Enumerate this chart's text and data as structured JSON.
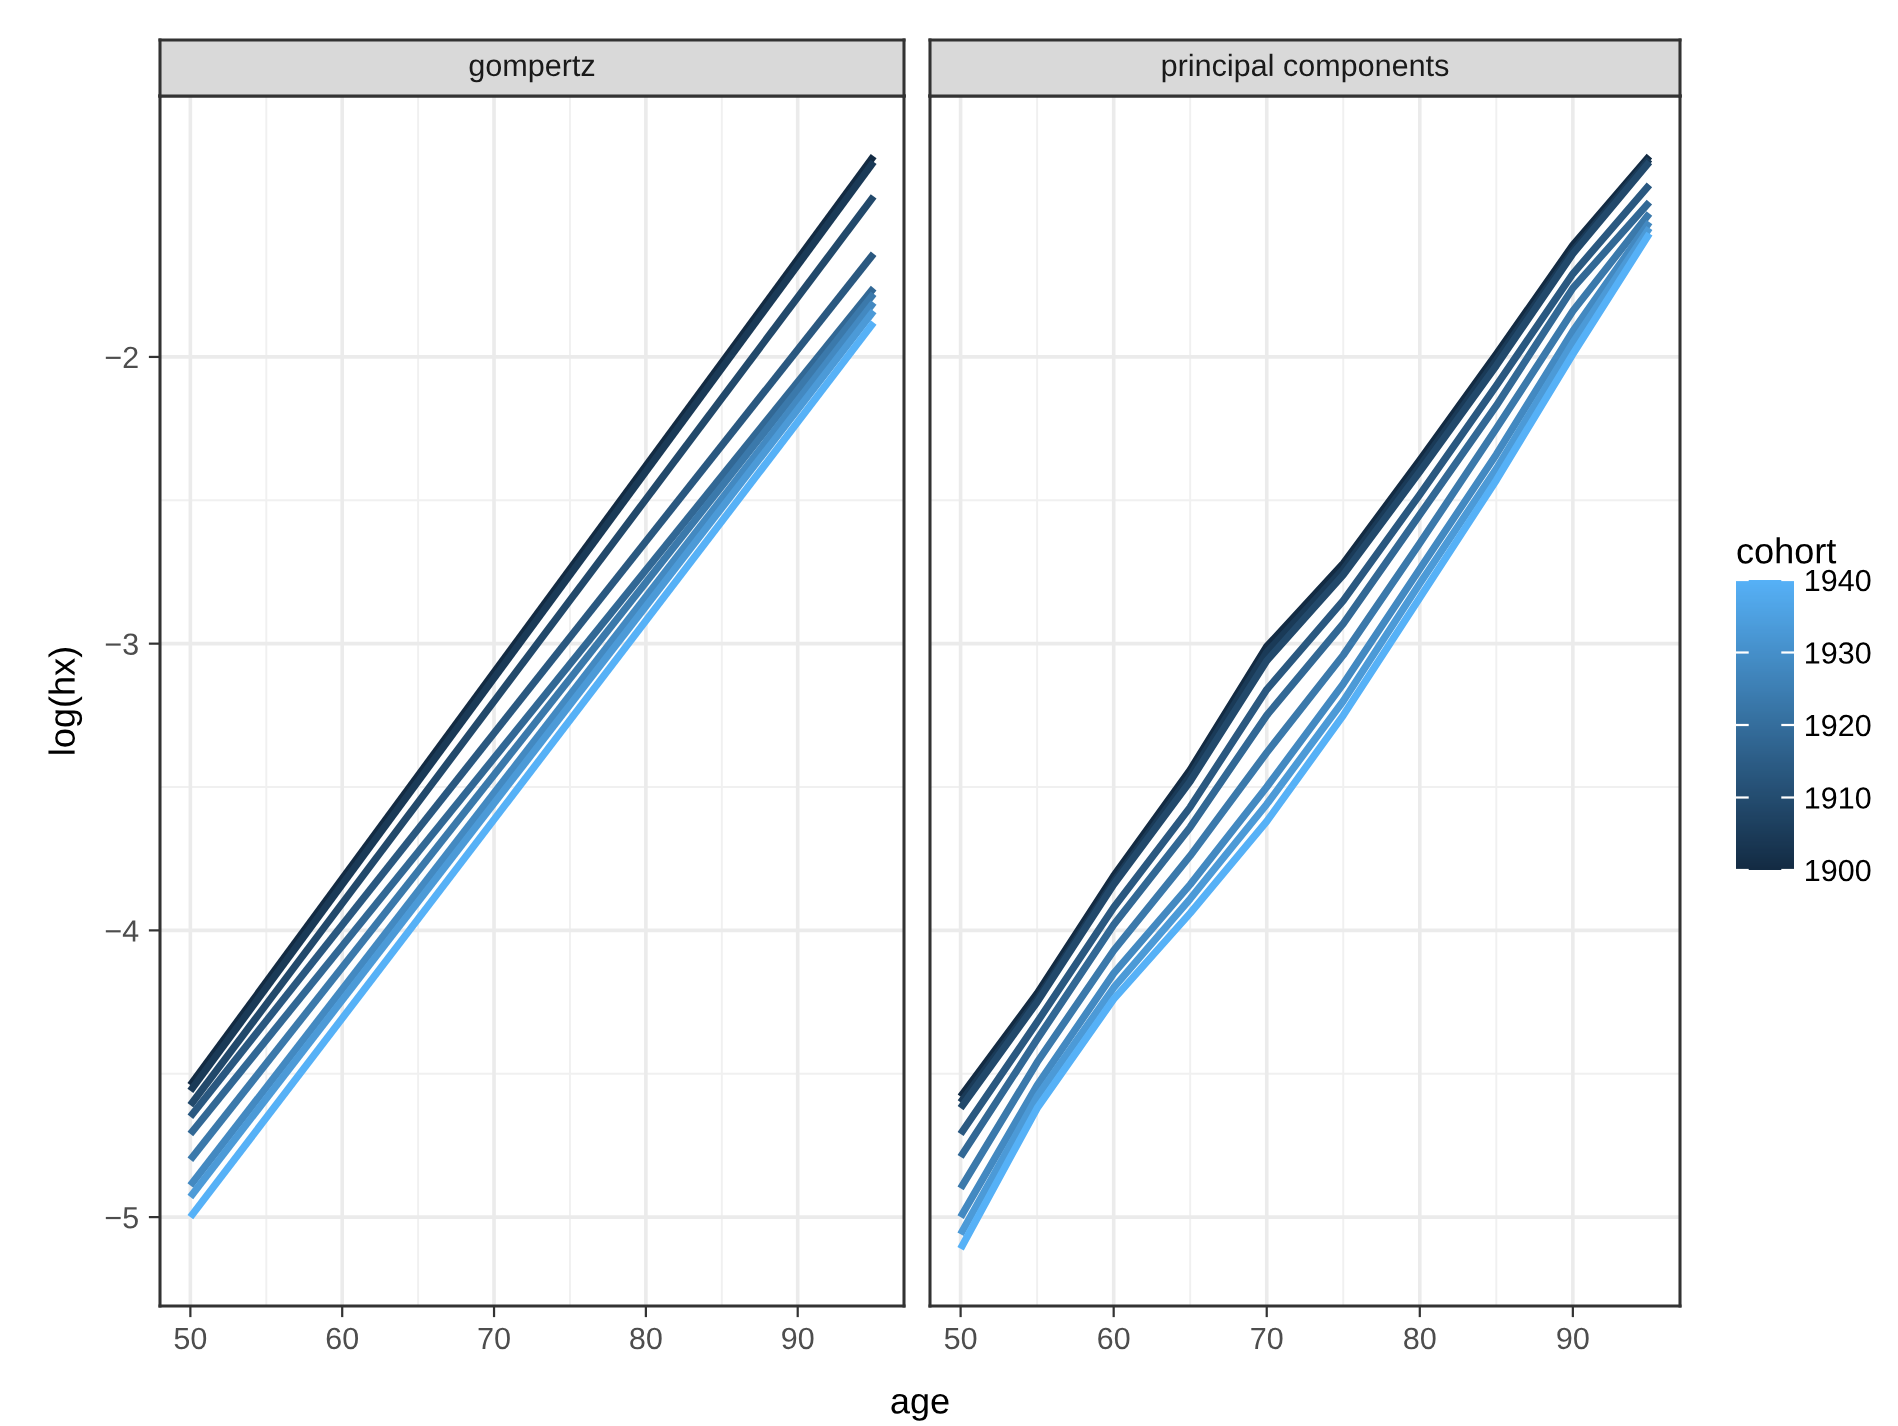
{
  "chart_data": [
    {
      "type": "line",
      "title": "gompertz",
      "xlabel": "age",
      "ylabel": "log(hx)",
      "xlim": [
        48,
        97
      ],
      "ylim": [
        -5.31,
        -1.09
      ],
      "xticks": [
        50,
        60,
        70,
        80,
        90
      ],
      "yticks": [
        -5,
        -4,
        -3,
        -2
      ],
      "grid": true,
      "line_style": "solid",
      "x": [
        50,
        95
      ],
      "series": [
        {
          "color": "#132b43",
          "values": [
            -4.54,
            -1.3
          ]
        },
        {
          "color": "#1a3a57",
          "values": [
            -4.56,
            -1.32
          ]
        },
        {
          "color": "#22496b",
          "values": [
            -4.61,
            -1.44
          ]
        },
        {
          "color": "#2a5880",
          "values": [
            -4.65,
            -1.64
          ]
        },
        {
          "color": "#326895",
          "values": [
            -4.71,
            -1.76
          ]
        },
        {
          "color": "#3b79ab",
          "values": [
            -4.8,
            -1.78
          ]
        },
        {
          "color": "#4389c1",
          "values": [
            -4.89,
            -1.81
          ]
        },
        {
          "color": "#4c9ad7",
          "values": [
            -4.93,
            -1.84
          ]
        },
        {
          "color": "#56b1f7",
          "values": [
            -5.0,
            -1.88
          ]
        }
      ]
    },
    {
      "type": "line",
      "title": "principal components",
      "xlim": [
        48,
        97
      ],
      "ylim": [
        -5.31,
        -1.09
      ],
      "xticks": [
        50,
        60,
        70,
        80,
        90
      ],
      "yticks": [
        -5,
        -4,
        -3,
        -2
      ],
      "grid": true,
      "line_style": "solid",
      "tick_labels": "x",
      "clabel": "cohort",
      "clim": [
        1900,
        1940
      ],
      "cticks": [
        1900,
        1910,
        1920,
        1930,
        1940
      ],
      "x": [
        50,
        55,
        60,
        65,
        70,
        75,
        80,
        85,
        90,
        95
      ],
      "series": [
        {
          "color": "#132b43",
          "values": [
            -4.58,
            -4.22,
            -3.81,
            -3.44,
            -3.01,
            -2.72,
            -2.36,
            -1.99,
            -1.61,
            -1.3
          ]
        },
        {
          "color": "#1a3a57",
          "values": [
            -4.6,
            -4.24,
            -3.83,
            -3.46,
            -3.03,
            -2.74,
            -2.38,
            -2.01,
            -1.63,
            -1.31
          ]
        },
        {
          "color": "#22496b",
          "values": [
            -4.62,
            -4.25,
            -3.84,
            -3.48,
            -3.06,
            -2.76,
            -2.4,
            -2.03,
            -1.64,
            -1.32
          ]
        },
        {
          "color": "#2a5880",
          "values": [
            -4.71,
            -4.32,
            -3.92,
            -3.57,
            -3.16,
            -2.85,
            -2.48,
            -2.1,
            -1.71,
            -1.4
          ]
        },
        {
          "color": "#326895",
          "values": [
            -4.79,
            -4.38,
            -3.98,
            -3.64,
            -3.25,
            -2.93,
            -2.55,
            -2.17,
            -1.76,
            -1.46
          ]
        },
        {
          "color": "#3b79ab",
          "values": [
            -4.9,
            -4.46,
            -4.07,
            -3.74,
            -3.38,
            -3.04,
            -2.65,
            -2.25,
            -1.84,
            -1.5
          ]
        },
        {
          "color": "#4389c1",
          "values": [
            -5.0,
            -4.54,
            -4.15,
            -3.84,
            -3.5,
            -3.14,
            -2.74,
            -2.34,
            -1.91,
            -1.53
          ]
        },
        {
          "color": "#4c9ad7",
          "values": [
            -5.06,
            -4.58,
            -4.2,
            -3.89,
            -3.56,
            -3.2,
            -2.79,
            -2.39,
            -1.95,
            -1.55
          ]
        },
        {
          "color": "#56b1f7",
          "values": [
            -5.11,
            -4.62,
            -4.24,
            -3.94,
            -3.62,
            -3.25,
            -2.84,
            -2.43,
            -1.99,
            -1.57
          ]
        }
      ]
    }
  ]
}
